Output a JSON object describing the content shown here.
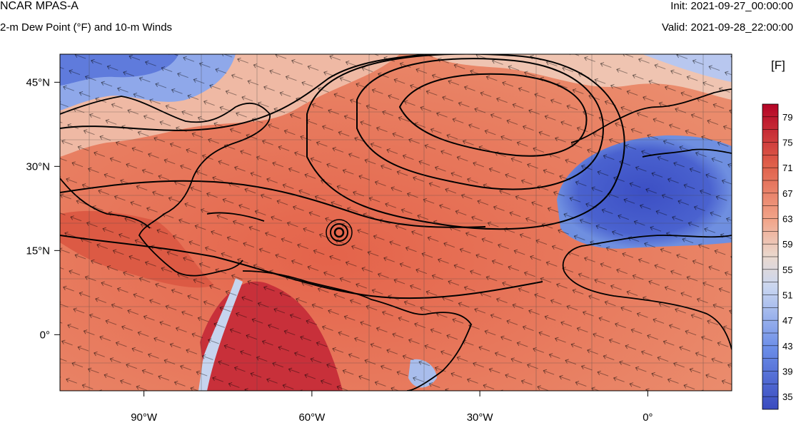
{
  "header": {
    "model": "NCAR MPAS-A",
    "field": "2-m Dew Point (°F) and 10-m Winds",
    "init": "Init: 2021-09-27_00:00:00",
    "valid": "Valid: 2021-09-28_22:00:00"
  },
  "chart_data": {
    "type": "heatmap",
    "lon_range": [
      -105,
      15
    ],
    "lat_range": [
      -10,
      50
    ],
    "x_ticks": [
      {
        "lon": -90,
        "label": "90°W"
      },
      {
        "lon": -60,
        "label": "60°W"
      },
      {
        "lon": -30,
        "label": "30°W"
      },
      {
        "lon": 0,
        "label": "0°"
      }
    ],
    "y_ticks": [
      {
        "lat": 45,
        "label": "45°N"
      },
      {
        "lat": 30,
        "label": "30°N"
      },
      {
        "lat": 15,
        "label": "15°N"
      },
      {
        "lat": 0,
        "label": "0°"
      }
    ],
    "colorbar": {
      "unit": "[F]",
      "min": 33,
      "max": 81,
      "labels": [
        "79",
        "75",
        "71",
        "67",
        "63",
        "59",
        "55",
        "51",
        "47",
        "43",
        "39",
        "35"
      ],
      "label_values": [
        79,
        75,
        71,
        67,
        63,
        59,
        55,
        51,
        47,
        43,
        39,
        35
      ]
    },
    "features": {
      "hurricane_center": {
        "lon": -56,
        "lat": 18
      }
    }
  }
}
